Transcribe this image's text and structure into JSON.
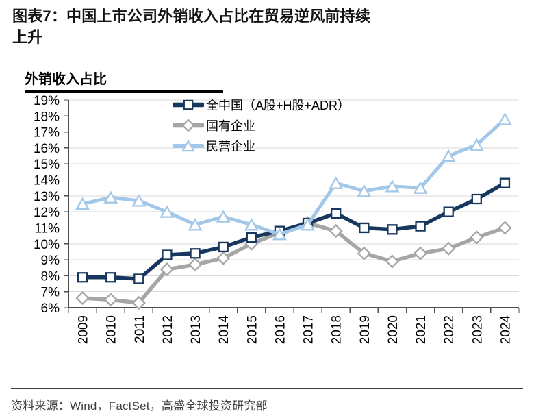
{
  "header": {
    "title_line1": "图表7：中国上市公司外销收入占比在贸易逆风前持续",
    "title_line2": "上升"
  },
  "chart": {
    "heading": "外销收入占比"
  },
  "chart_data": {
    "type": "line",
    "title": "外销收入占比",
    "categories": [
      "2009",
      "2010",
      "2011",
      "2012",
      "2013",
      "2014",
      "2015",
      "2016",
      "2017",
      "2018",
      "2019",
      "2020",
      "2021",
      "2022",
      "2023",
      "2024"
    ],
    "series": [
      {
        "id": "all-china",
        "name": "全中国（A股+H股+ADR）",
        "marker": "square",
        "color": "#17375e",
        "line_width": 5.5,
        "values": [
          7.9,
          7.9,
          7.8,
          9.3,
          9.4,
          9.8,
          10.4,
          10.8,
          11.3,
          11.9,
          11.0,
          10.9,
          11.1,
          12.0,
          12.8,
          13.8
        ]
      },
      {
        "id": "soe",
        "name": "国有企业",
        "marker": "diamond",
        "color": "#a6a6a6",
        "line_width": 5.5,
        "values": [
          6.6,
          6.5,
          6.3,
          8.4,
          8.7,
          9.1,
          10.0,
          10.7,
          11.3,
          10.8,
          9.4,
          8.9,
          9.4,
          9.7,
          10.4,
          11.0
        ]
      },
      {
        "id": "poe",
        "name": "民营企业",
        "marker": "triangle",
        "color": "#a3c7e8",
        "line_width": 5,
        "values": [
          12.5,
          12.9,
          12.7,
          12.0,
          11.2,
          11.7,
          11.2,
          10.6,
          11.2,
          13.8,
          13.3,
          13.6,
          13.5,
          15.5,
          16.2,
          17.8
        ]
      }
    ],
    "draw_order": [
      1,
      0,
      2
    ],
    "ylim": [
      6,
      19
    ],
    "ytick_step": 1,
    "ytick_suffix": "%",
    "grid": true,
    "legend_position": "top-inside",
    "axis_color": "#4d4d4d",
    "grid_color": "#dadada",
    "tick_label_color": "#000000"
  },
  "footer": {
    "source": "资料来源：Wind，FactSet，高盛全球投资研究部"
  }
}
